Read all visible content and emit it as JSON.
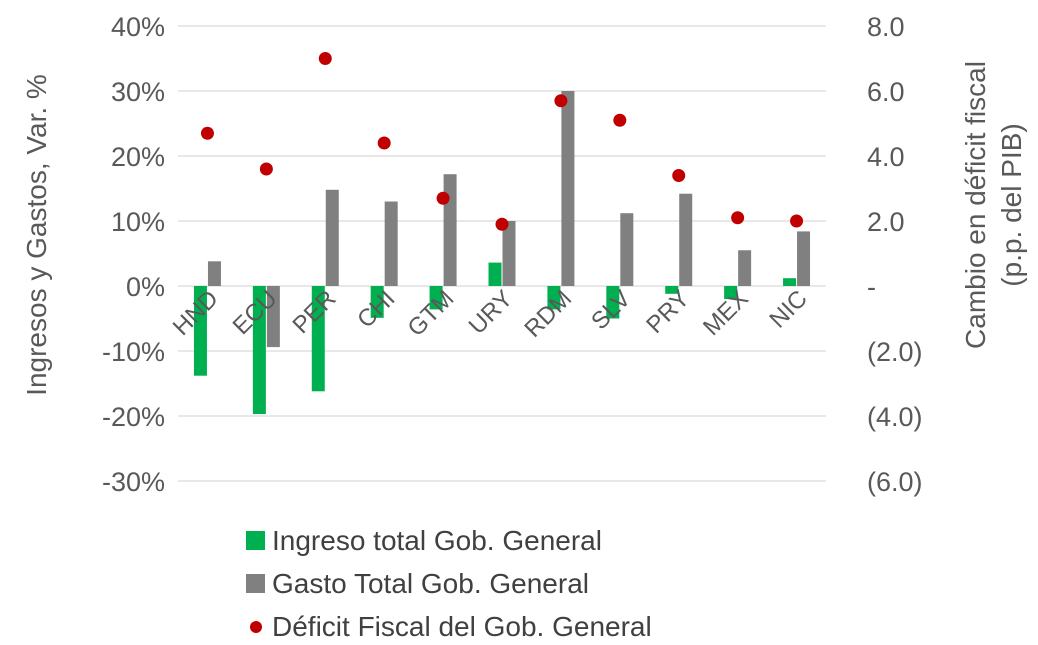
{
  "chart_data": {
    "type": "bar",
    "categories": [
      "HND",
      "ECU",
      "PER",
      "CHI",
      "GTM",
      "URY",
      "RDM",
      "SLV",
      "PRY",
      "MEX",
      "NIC"
    ],
    "ylabel": "Ingresos y Gastos, Var. %",
    "y2label_line1": "Cambio en déficit fiscal",
    "y2label_line2": "(p.p. del PIB)",
    "ylim": [
      -30,
      40
    ],
    "y2lim": [
      -6,
      8
    ],
    "y_ticks": [
      "40%",
      "30%",
      "20%",
      "10%",
      "0%",
      "-10%",
      "-20%",
      "-30%"
    ],
    "y2_ticks": [
      "8.0",
      "6.0",
      "4.0",
      "2.0",
      "-",
      "(2.0)",
      "(4.0)",
      "(6.0)"
    ],
    "grid": true,
    "legend_position": "bottom",
    "series": [
      {
        "name": "Ingreso total Gob. General",
        "kind": "bar",
        "axis": "left",
        "color": "#00B050",
        "values": [
          -13.8,
          -19.7,
          -16.2,
          -4.9,
          -3.6,
          3.6,
          -3.6,
          -5.0,
          -1.2,
          -2.0,
          1.2
        ]
      },
      {
        "name": "Gasto Total Gob. General",
        "kind": "bar",
        "axis": "left",
        "color": "#808080",
        "values": [
          3.8,
          -9.4,
          14.8,
          13.0,
          17.2,
          10.0,
          30.0,
          11.2,
          14.2,
          5.5,
          8.4
        ]
      },
      {
        "name": "Déficit Fiscal del Gob. General",
        "kind": "scatter",
        "axis": "right",
        "color": "#C00000",
        "values": [
          4.7,
          3.6,
          7.0,
          4.4,
          2.7,
          1.9,
          5.7,
          5.1,
          3.4,
          2.1,
          2.0
        ]
      }
    ]
  }
}
